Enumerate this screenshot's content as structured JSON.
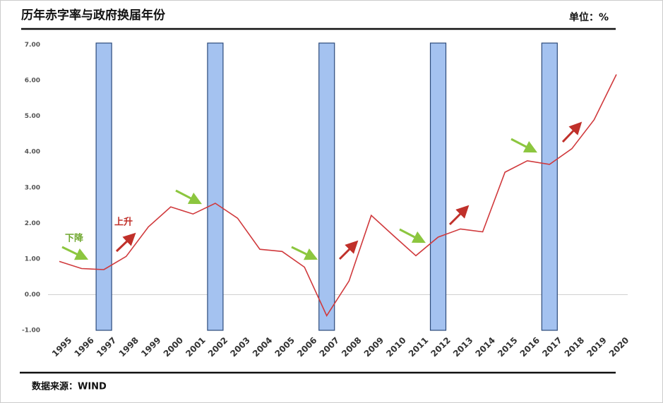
{
  "chart_data": {
    "type": "bar-line",
    "title": "历年赤字率与政府换届年份",
    "unit": "单位：%",
    "source": "数据来源：WIND",
    "annotations": [
      {
        "text": "下降",
        "color": "#70a830"
      },
      {
        "text": "上升",
        "color": "#c0302a"
      }
    ],
    "categories": [
      "1995",
      "1996",
      "1997",
      "1998",
      "1999",
      "2000",
      "2001",
      "2002",
      "2003",
      "2004",
      "2005",
      "2006",
      "2007",
      "2008",
      "2009",
      "2010",
      "2011",
      "2012",
      "2013",
      "2014",
      "2015",
      "2016",
      "2017",
      "2018",
      "2019",
      "2020"
    ],
    "series": [
      {
        "type": "bar",
        "color": "#a4c2f0",
        "values": [
          null,
          null,
          7.05,
          null,
          null,
          null,
          null,
          7.05,
          null,
          null,
          null,
          null,
          7.05,
          null,
          null,
          null,
          null,
          7.05,
          null,
          null,
          null,
          null,
          7.05,
          null,
          null,
          null
        ]
      },
      {
        "type": "line",
        "color": "#d0393c",
        "values": [
          0.93,
          0.73,
          0.7,
          1.07,
          1.9,
          2.46,
          2.26,
          2.56,
          2.14,
          1.27,
          1.21,
          0.77,
          -0.59,
          0.38,
          2.22,
          1.65,
          1.09,
          1.61,
          1.84,
          1.76,
          3.43,
          3.75,
          3.65,
          4.09,
          4.9,
          6.17
        ]
      }
    ],
    "ylim": [
      -1,
      7.05
    ],
    "yticks": [
      {
        "value": -1,
        "label": "-1.00"
      },
      {
        "value": 0,
        "label": "0.00"
      },
      {
        "value": 1,
        "label": "1.00"
      },
      {
        "value": 2,
        "label": "2.00"
      },
      {
        "value": 3,
        "label": "3.00"
      },
      {
        "value": 4,
        "label": "4.00"
      },
      {
        "value": 5,
        "label": "5.00"
      },
      {
        "value": 6,
        "label": "6.00"
      },
      {
        "value": 7,
        "label": "7.00"
      }
    ]
  }
}
